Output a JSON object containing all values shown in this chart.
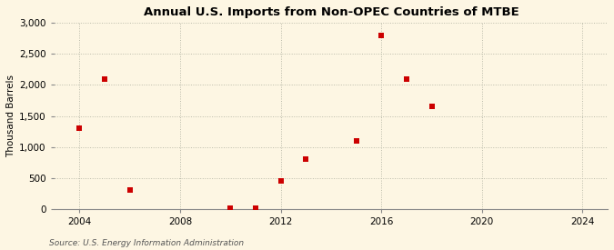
{
  "title": "Annual U.S. Imports from Non-OPEC Countries of MTBE",
  "ylabel": "Thousand Barrels",
  "source": "Source: U.S. Energy Information Administration",
  "background_color": "#fdf6e3",
  "plot_bg_color": "#fdf6e3",
  "marker_color": "#cc0000",
  "marker_size": 18,
  "xlim": [
    2003,
    2025
  ],
  "ylim": [
    0,
    3000
  ],
  "xticks": [
    2004,
    2008,
    2012,
    2016,
    2020,
    2024
  ],
  "yticks": [
    0,
    500,
    1000,
    1500,
    2000,
    2500,
    3000
  ],
  "ytick_labels": [
    "0",
    "500",
    "1,000",
    "1,500",
    "2,000",
    "2,500",
    "3,000"
  ],
  "data_x": [
    2004,
    2005,
    2006,
    2010,
    2011,
    2012,
    2013,
    2015,
    2016,
    2017,
    2018
  ],
  "data_y": [
    1300,
    2100,
    300,
    10,
    10,
    450,
    800,
    1100,
    2800,
    2100,
    1650
  ]
}
